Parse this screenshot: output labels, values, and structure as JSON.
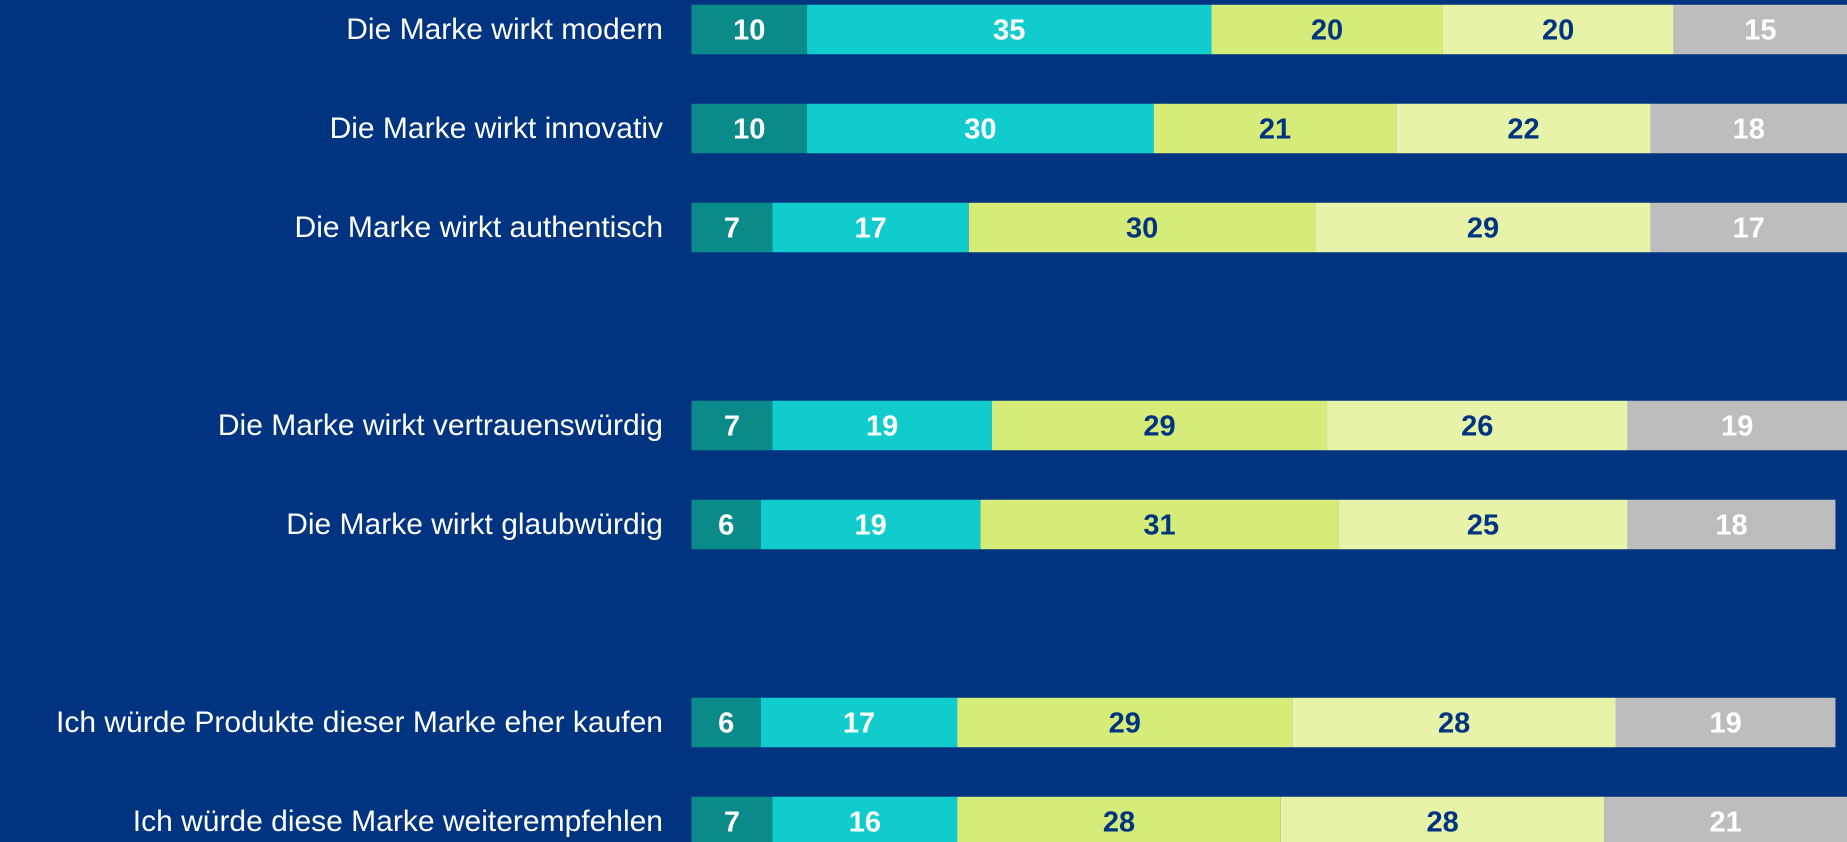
{
  "chart_data": {
    "type": "stacked_bar_horizontal",
    "background": "#003380",
    "categories": [
      "Die Marke wirkt modern",
      "Die Marke wirkt innovativ",
      "Die Marke wirkt authentisch",
      null,
      "Die Marke wirkt vertrauenswürdig",
      "Die Marke wirkt glaubwürdig",
      null,
      "Ich würde Produkte dieser Marke eher kaufen",
      "Ich würde diese Marke weiterempfehlen"
    ],
    "xlim": [
      0,
      100
    ],
    "series": [
      {
        "color": "#0b8a8a",
        "label_color": "#ffffff",
        "values": [
          10,
          10,
          7,
          null,
          7,
          6,
          null,
          6,
          7
        ]
      },
      {
        "color": "#10cccc",
        "label_color": "#ffffff",
        "values": [
          35,
          30,
          17,
          null,
          19,
          19,
          null,
          17,
          16
        ]
      },
      {
        "color": "#d6ec78",
        "label_color": "#003380",
        "values": [
          20,
          21,
          30,
          null,
          29,
          31,
          null,
          29,
          28
        ]
      },
      {
        "color": "#e6f3a8",
        "label_color": "#003380",
        "values": [
          20,
          22,
          29,
          null,
          26,
          25,
          null,
          28,
          28
        ]
      },
      {
        "color": "#bdbdbd",
        "label_color": "#ffffff",
        "values": [
          15,
          18,
          17,
          null,
          19,
          18,
          null,
          19,
          21
        ]
      }
    ]
  }
}
